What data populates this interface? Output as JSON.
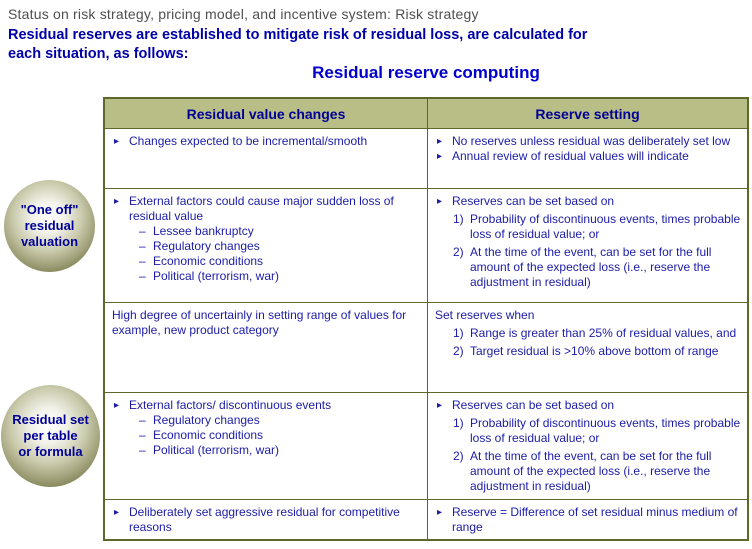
{
  "header": {
    "subtitle": "Status on risk strategy, pricing model, and incentive system: Risk strategy",
    "lead": "Residual reserves are established to mitigate risk of residual loss, are calculated for\neach situation, as follows:",
    "table_title": "Residual reserve computing"
  },
  "badges": [
    {
      "label": "\"One off\"\nresidual\nvaluation"
    },
    {
      "label": "Residual set\nper table\nor formula"
    }
  ],
  "colors": {
    "accent_blue": "#0000cc",
    "body_blue": "#1c1ca6",
    "header_navy": "#000099",
    "khaki_header_bg": "#b8be85",
    "olive_border": "#5e682b",
    "subtitle_gray": "#4f4f4f"
  },
  "table": {
    "headers": [
      "Residual value changes",
      "Reserve setting"
    ],
    "rows": [
      {
        "left": [
          {
            "marker": "▸",
            "text": "Changes expected to be incremental/smooth"
          }
        ],
        "right": [
          {
            "marker": "▸",
            "text": "No reserves unless residual was deliberately set low"
          },
          {
            "marker": "▸",
            "text": "Annual review of residual values will indicate"
          }
        ]
      },
      {
        "left": [
          {
            "marker": "▸",
            "text": "External factors could cause major sudden loss of residual value"
          },
          {
            "marker": "–",
            "text": "Lessee bankruptcy"
          },
          {
            "marker": "–",
            "text": "Regulatory changes"
          },
          {
            "marker": "–",
            "text": "Economic conditions"
          },
          {
            "marker": "–",
            "text": "Political (terrorism, war)"
          }
        ],
        "right": [
          {
            "marker": "▸",
            "text": "Reserves can be set based on"
          },
          {
            "marker": "1)",
            "text": "Probability of discontinuous events, times probable loss of residual value; or"
          },
          {
            "marker": "2)",
            "text": "At the time of the event, can be set for the full amount of the expected loss (i.e., reserve the adjustment in residual)"
          }
        ]
      },
      {
        "left": [
          {
            "marker": "",
            "text": "High degree of uncertainly in setting range of values for example, new product category"
          }
        ],
        "right": [
          {
            "marker": "",
            "text": "Set reserves when"
          },
          {
            "marker": "1)",
            "text": "Range is greater than 25% of residual values, and"
          },
          {
            "marker": "2)",
            "text": "Target residual is >10% above bottom of range"
          }
        ]
      },
      {
        "left": [
          {
            "marker": "▸",
            "text": "External factors/ discontinuous events"
          },
          {
            "marker": "–",
            "text": "Regulatory changes"
          },
          {
            "marker": "–",
            "text": "Economic conditions"
          },
          {
            "marker": "–",
            "text": "Political (terrorism, war)"
          }
        ],
        "right": [
          {
            "marker": "▸",
            "text": "Reserves can be set based on"
          },
          {
            "marker": "1)",
            "text": "Probability of discontinuous events, times probable loss of residual value; or"
          },
          {
            "marker": "2)",
            "text": "At the time of the event, can be set for the full amount of the expected loss (i.e., reserve the adjustment in residual)"
          }
        ]
      },
      {
        "left": [
          {
            "marker": "▸",
            "text": "Deliberately set aggressive residual for competitive reasons"
          }
        ],
        "right": [
          {
            "marker": "▸",
            "text": "Reserve = Difference of set residual minus medium of range"
          }
        ]
      }
    ]
  }
}
